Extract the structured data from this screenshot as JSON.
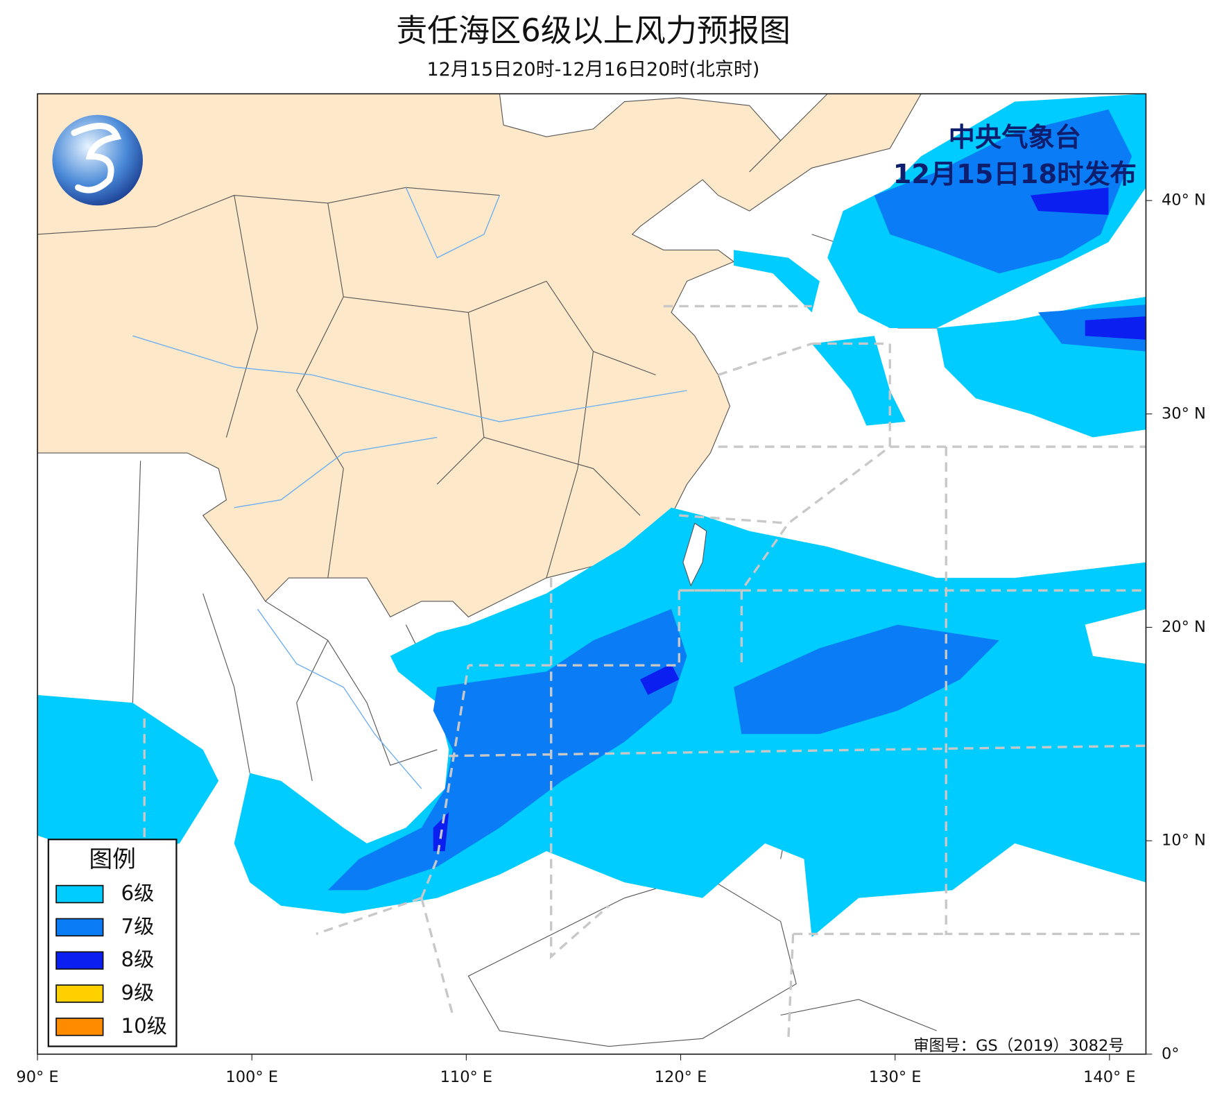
{
  "header": {
    "title": "责任海区6级以上风力预报图",
    "subtitle": "12月15日20时-12月16日20时(北京时)"
  },
  "issuer": {
    "agency": "中央气象台",
    "issued": "12月15日18时发布"
  },
  "legend": {
    "title": "图例",
    "items": [
      {
        "label": "6级",
        "color": "#00ccff"
      },
      {
        "label": "7级",
        "color": "#0a7cf5"
      },
      {
        "label": "8级",
        "color": "#0a1ff0"
      },
      {
        "label": "9级",
        "color": "#ffd000"
      },
      {
        "label": "10级",
        "color": "#ff8c00"
      }
    ]
  },
  "approval": "审图号：GS（2019）3082号",
  "map": {
    "xlim": [
      90,
      141.7
    ],
    "ylim": [
      0,
      45
    ],
    "xticks": [
      {
        "value": 90,
        "label": "90° E"
      },
      {
        "value": 100,
        "label": "100° E"
      },
      {
        "value": 110,
        "label": "110° E"
      },
      {
        "value": 120,
        "label": "120° E"
      },
      {
        "value": 130,
        "label": "130° E"
      },
      {
        "value": 140,
        "label": "140° E"
      }
    ],
    "yticks": [
      {
        "value": 0,
        "label": "0°"
      },
      {
        "value": 10,
        "label": "10° N"
      },
      {
        "value": 20,
        "label": "20° N"
      },
      {
        "value": 30,
        "label": "30° N"
      },
      {
        "value": 40,
        "label": "40° N"
      }
    ]
  }
}
